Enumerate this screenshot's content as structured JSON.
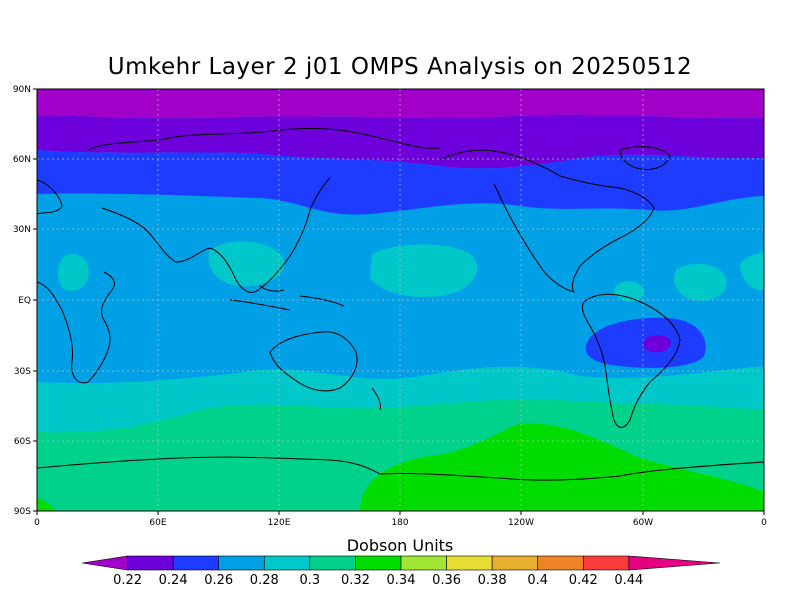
{
  "title": "Umkehr Layer 2 j01 OMPS Analysis on 20250512",
  "lat_labels": [
    "90N",
    "60N",
    "30N",
    "EQ",
    "30S",
    "60S",
    "90S"
  ],
  "lon_labels": [
    "0",
    "60E",
    "120E",
    "180",
    "120W",
    "60W",
    "0"
  ],
  "colorbar": {
    "title": "Dobson Units",
    "levels": [
      "0.22",
      "0.24",
      "0.26",
      "0.28",
      "0.3",
      "0.32",
      "0.34",
      "0.36",
      "0.38",
      "0.4",
      "0.42",
      "0.44"
    ],
    "colors": [
      "#a000c8",
      "#6e00dc",
      "#1e3cff",
      "#00a0e6",
      "#00c8c8",
      "#00d28c",
      "#00dc00",
      "#a0e632",
      "#e6dc32",
      "#e6af2d",
      "#f08228",
      "#fa3c3c",
      "#e60082"
    ]
  },
  "field_colors": {
    "c022": "#a000c8",
    "c024": "#6e00dc",
    "c026": "#1e3cff",
    "c028": "#00a0e6",
    "c030": "#00c8c8",
    "c032": "#00d28c",
    "c034": "#00dc00"
  }
}
